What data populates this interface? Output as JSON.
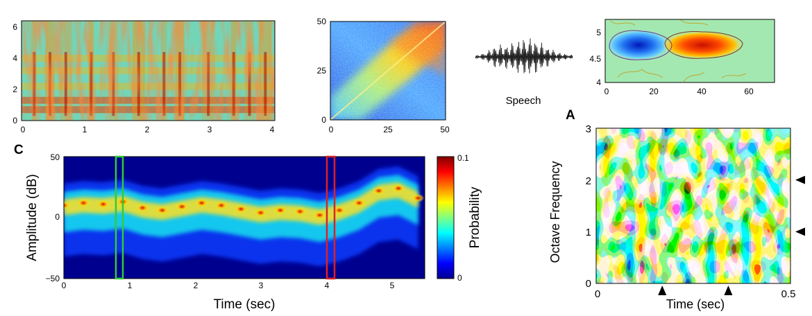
{
  "figure": {
    "panel_labels": {
      "c": "C",
      "a": "A"
    },
    "speech_label": "Speech",
    "spectrogram": {
      "x_ticks": [
        "0",
        "1",
        "2",
        "3",
        "4"
      ],
      "y_ticks": [
        "0",
        "2",
        "4",
        "6"
      ]
    },
    "matrix": {
      "x_ticks": [
        "0",
        "25",
        "50"
      ],
      "y_ticks": [
        "0",
        "25",
        "50"
      ]
    },
    "strf": {
      "x_ticks": [
        "0",
        "20",
        "40",
        "60"
      ],
      "y_ticks": [
        "4",
        "4.5",
        "5"
      ]
    },
    "amplitude": {
      "ylabel": "Amplitude (dB)",
      "xlabel": "Time (sec)",
      "x_ticks": [
        "0",
        "1",
        "2",
        "3",
        "4",
        "5"
      ],
      "y_ticks": [
        "50",
        "0",
        "−50"
      ],
      "colorbar_label": "Probability",
      "colorbar_ticks": [
        "0.1",
        "0"
      ],
      "highlight_colors": {
        "green": "#33cc33",
        "red": "#dd2222"
      }
    },
    "octave": {
      "ylabel": "Octave Frequency",
      "xlabel": "Time (sec)",
      "x_ticks": [
        "0",
        "0.5"
      ],
      "y_ticks": [
        "0",
        "1",
        "2",
        "3"
      ]
    }
  },
  "chart_data": [
    {
      "type": "heatmap",
      "panel": "spectrogram",
      "xlim": [
        0,
        4
      ],
      "ylim": [
        0,
        6.4
      ],
      "formant_bands": [
        0.7,
        1.3,
        2.2,
        3.2,
        4.0
      ],
      "energy_bursts": [
        0.2,
        0.45,
        0.7,
        1.1,
        1.45,
        1.85,
        2.25,
        2.5,
        2.95,
        3.35,
        3.6,
        3.85
      ]
    },
    {
      "type": "heatmap",
      "panel": "matrix",
      "xlim": [
        0,
        50
      ],
      "ylim": [
        0,
        50
      ],
      "pattern": "diagonal high values increasing toward upper right"
    },
    {
      "type": "heatmap",
      "panel": "strf",
      "xlim": [
        0,
        70
      ],
      "ylim": [
        4,
        5.3
      ],
      "blobs": [
        {
          "x": 16,
          "y": 4.75,
          "sign": "negative"
        },
        {
          "x": 41,
          "y": 4.75,
          "sign": "positive"
        }
      ]
    },
    {
      "type": "heatmap",
      "panel": "amplitude",
      "xlim": [
        0,
        5.5
      ],
      "ylim": [
        -50,
        50
      ],
      "colorbar_range": [
        0,
        0.1
      ],
      "ridge_times": [
        0,
        0.3,
        0.6,
        0.9,
        1.2,
        1.5,
        1.8,
        2.1,
        2.4,
        2.7,
        3.0,
        3.3,
        3.6,
        3.9,
        4.2,
        4.5,
        4.8,
        5.1,
        5.4
      ],
      "ridge_db": [
        10,
        12,
        11,
        13,
        8,
        6,
        9,
        12,
        10,
        7,
        4,
        6,
        5,
        2,
        6,
        12,
        22,
        24,
        16
      ],
      "highlights": [
        {
          "x0": 0.8,
          "x1": 0.9,
          "color": "green"
        },
        {
          "x0": 4.0,
          "x1": 4.1,
          "color": "red"
        }
      ]
    },
    {
      "type": "heatmap",
      "panel": "octave",
      "xlim": [
        0,
        0.5
      ],
      "ylim": [
        0,
        3
      ],
      "x_markers": [
        0.17,
        0.34
      ],
      "y_markers": [
        1,
        2
      ]
    }
  ]
}
